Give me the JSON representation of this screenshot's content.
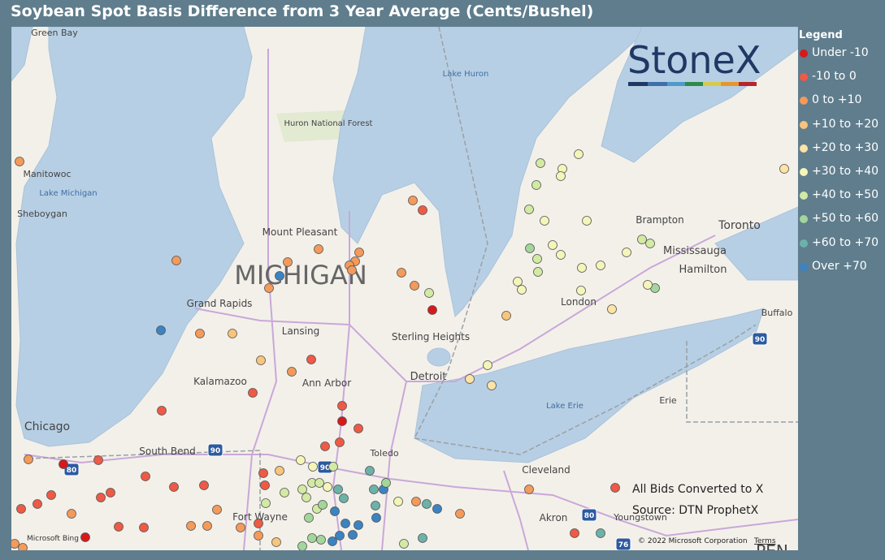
{
  "title": "Soybean Spot Basis Difference from 3 Year Average (Cents/Bushel)",
  "legend": {
    "title": "Legend",
    "items": [
      {
        "label": "Under -10",
        "color": "#d7191c"
      },
      {
        "label": "-10 to 0",
        "color": "#ee5a45"
      },
      {
        "label": "0 to +10",
        "color": "#f49a5a"
      },
      {
        "label": "+10 to +20",
        "color": "#f8c57c"
      },
      {
        "label": "+20 to +30",
        "color": "#fde3a4"
      },
      {
        "label": "+30 to +40",
        "color": "#f4f5b8"
      },
      {
        "label": "+40 to +50",
        "color": "#d2eaa4"
      },
      {
        "label": "+50 to +60",
        "color": "#a3d69a"
      },
      {
        "label": "+60 to +70",
        "color": "#6cb2a8"
      },
      {
        "label": "Over +70",
        "color": "#3b83c2"
      }
    ]
  },
  "logo": "StoneX",
  "notes": [
    "All Bids Converted to X",
    "Source: DTN ProphetX"
  ],
  "state_label": "MICHIGAN",
  "water_labels": [
    "Lake Michigan",
    "Lake Huron",
    "Lake Erie"
  ],
  "place_labels": [
    "Green Bay",
    "Manitowoc",
    "Sheboygan",
    "Huron National Forest",
    "Mount Pleasant",
    "Grand Rapids",
    "Lansing",
    "Sterling Heights",
    "Kalamazoo",
    "Ann Arbor",
    "Detroit",
    "Chicago",
    "South Bend",
    "Toledo",
    "Erie",
    "Cleveland",
    "Fort Wayne",
    "Akron",
    "Youngstown",
    "Brampton",
    "Toronto",
    "Mississauga",
    "Hamilton",
    "London",
    "Buffalo",
    "PEN"
  ],
  "highways": [
    "90",
    "80",
    "90",
    "80",
    "76",
    "90"
  ],
  "attribution": {
    "provider": "Microsoft Bing",
    "copyright": "© 2022 Microsoft Corporation",
    "terms": "Terms"
  }
}
